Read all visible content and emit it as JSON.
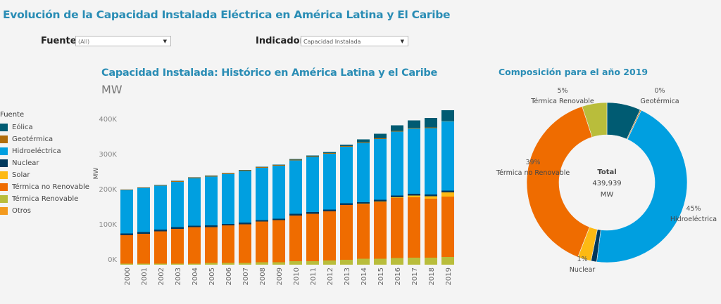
{
  "header": {
    "title": "Evolución de la  Capacidad Instalada Eléctrica en América Latina y El Caribe"
  },
  "filters": {
    "fuente": {
      "label": "Fuente:",
      "value": "(All)"
    },
    "indicador": {
      "label": "Indicador:",
      "value": "Capacidad Instalada"
    }
  },
  "legend": {
    "title": "Fuente",
    "items": [
      {
        "label": "Eólica",
        "color": "#005b72"
      },
      {
        "label": "Geotérmica",
        "color": "#b06d0c"
      },
      {
        "label": "Hidroeléctrica",
        "color": "#009fe0"
      },
      {
        "label": "Nuclear",
        "color": "#00385c"
      },
      {
        "label": "Solar",
        "color": "#fdb913"
      },
      {
        "label": "Térmica no Renovable",
        "color": "#ef6c00"
      },
      {
        "label": "Térmica Renovable",
        "color": "#b9bd3b"
      },
      {
        "label": "Otros",
        "color": "#f39a1e"
      }
    ]
  },
  "chart_data": [
    {
      "type": "bar",
      "stacked": true,
      "title": "Capacidad Instalada: Histórico en América Latina y el Caribe",
      "subtitle": "MW",
      "xlabel": "",
      "ylabel": "MW",
      "ylim": [
        0,
        440000
      ],
      "yticks": [
        "0K",
        "100K",
        "200K",
        "300K",
        "400K"
      ],
      "ytick_values": [
        0,
        100000,
        200000,
        300000,
        400000
      ],
      "categories": [
        "2000",
        "2001",
        "2002",
        "2003",
        "2004",
        "2005",
        "2006",
        "2007",
        "2008",
        "2009",
        "2010",
        "2011",
        "2012",
        "2013",
        "2014",
        "2015",
        "2016",
        "2017",
        "2018",
        "2019"
      ],
      "series": [
        {
          "name": "Térmica Renovable",
          "color": "#b9bd3b",
          "values": [
            3000,
            3000,
            3000,
            3000,
            3000,
            5000,
            5000,
            5000,
            7000,
            7000,
            10000,
            10000,
            12000,
            14000,
            17000,
            17000,
            19000,
            20000,
            20000,
            22000
          ]
        },
        {
          "name": "Térmica no Renovable",
          "color": "#ef6c00",
          "values": [
            81000,
            85000,
            92000,
            99000,
            104000,
            102000,
            107000,
            110000,
            116000,
            120000,
            130000,
            135000,
            140000,
            156000,
            156000,
            162000,
            171000,
            172000,
            168000,
            172000
          ]
        },
        {
          "name": "Otros",
          "color": "#f39a1e",
          "values": [
            0,
            0,
            0,
            0,
            0,
            0,
            0,
            0,
            0,
            0,
            0,
            0,
            0,
            0,
            0,
            0,
            0,
            0,
            0,
            0
          ]
        },
        {
          "name": "Solar",
          "color": "#fdb913",
          "values": [
            0,
            0,
            0,
            0,
            0,
            0,
            0,
            0,
            0,
            0,
            0,
            0,
            0,
            0,
            1000,
            1000,
            2000,
            5000,
            7000,
            12000
          ]
        },
        {
          "name": "Nuclear",
          "color": "#00385c",
          "values": [
            5000,
            5000,
            5000,
            5000,
            4000,
            5000,
            4000,
            5000,
            4000,
            4000,
            5000,
            5000,
            5000,
            5000,
            4000,
            5000,
            5000,
            5000,
            5000,
            5000
          ]
        },
        {
          "name": "Hidroeléctrica",
          "color": "#009fe0",
          "values": [
            123000,
            125000,
            125000,
            129000,
            135000,
            139000,
            142000,
            147000,
            149000,
            151000,
            152000,
            157000,
            159000,
            161000,
            169000,
            173000,
            182000,
            186000,
            189000,
            198000
          ]
        },
        {
          "name": "Geotérmica",
          "color": "#b06d0c",
          "values": [
            1000,
            1000,
            1000,
            2000,
            2000,
            2000,
            2000,
            2000,
            2000,
            2000,
            2000,
            2000,
            2000,
            2000,
            2000,
            2000,
            2000,
            2000,
            2000,
            1000
          ]
        },
        {
          "name": "Eólica",
          "color": "#005b72",
          "values": [
            1000,
            1000,
            1000,
            1000,
            1000,
            1000,
            1000,
            1000,
            1000,
            1000,
            2000,
            2000,
            3000,
            4000,
            8000,
            13000,
            16000,
            21000,
            27000,
            30000
          ]
        }
      ]
    },
    {
      "type": "pie",
      "donut": true,
      "title": "Composición para el año 2019",
      "center_label": {
        "title": "Total",
        "value": "439,939",
        "unit": "MW"
      },
      "slices": [
        {
          "name": "Eólica",
          "color": "#005b72",
          "value": 30000,
          "label": ""
        },
        {
          "name": "Geotérmica",
          "color": "#b06d0c",
          "value": 1000,
          "label": "0%"
        },
        {
          "name": "Hidroeléctrica",
          "color": "#009fe0",
          "value": 198000,
          "label": "45%"
        },
        {
          "name": "Nuclear",
          "color": "#00385c",
          "value": 5000,
          "label": "1%"
        },
        {
          "name": "Solar",
          "color": "#fdb913",
          "value": 12000,
          "label": ""
        },
        {
          "name": "Térmica no Renovable",
          "color": "#ef6c00",
          "value": 172000,
          "label": "39%"
        },
        {
          "name": "Térmica Renovable",
          "color": "#b9bd3b",
          "value": 22000,
          "label": "5%"
        }
      ]
    }
  ]
}
